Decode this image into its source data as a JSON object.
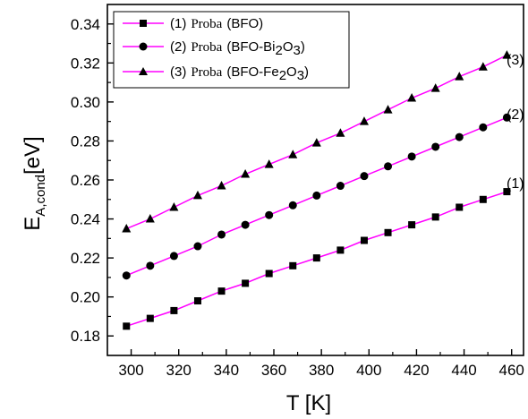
{
  "chart_data": {
    "type": "line",
    "xlabel": "T [K]",
    "ylabel": "E_A,cond[eV]",
    "xlim": [
      290,
      465
    ],
    "ylim": [
      0.17,
      0.35
    ],
    "xticks": [
      300,
      320,
      340,
      360,
      380,
      400,
      420,
      440,
      460
    ],
    "yticks": [
      0.18,
      0.2,
      0.22,
      0.24,
      0.26,
      0.28,
      0.3,
      0.32,
      0.34
    ],
    "xticks_text": [
      "300",
      "320",
      "340",
      "360",
      "380",
      "400",
      "420",
      "440",
      "460"
    ],
    "yticks_text": [
      "0.18",
      "0.20",
      "0.22",
      "0.24",
      "0.26",
      "0.28",
      "0.30",
      "0.32",
      "0.34"
    ],
    "grid": false,
    "legend_position": "top-left",
    "series": [
      {
        "name": "(1) Proba (BFO)",
        "legend_num": "(1)",
        "legend_word": "Proba",
        "legend_text": "(BFO)",
        "end_label": "(1)",
        "marker": "square",
        "line_color": "#ff00ff",
        "marker_color": "#000000",
        "x": [
          298,
          308,
          318,
          328,
          338,
          348,
          358,
          368,
          378,
          388,
          398,
          408,
          418,
          428,
          438,
          448,
          458
        ],
        "y": [
          0.185,
          0.189,
          0.193,
          0.198,
          0.203,
          0.207,
          0.212,
          0.216,
          0.22,
          0.224,
          0.229,
          0.233,
          0.237,
          0.241,
          0.246,
          0.25,
          0.254
        ]
      },
      {
        "name": "(2) Proba (BFO-Bi2O3)",
        "legend_num": "(2)",
        "legend_word": "Proba",
        "legend_text": "(BFO-Bi",
        "legend_sub1": "2",
        "legend_mid": "O",
        "legend_sub2": "3",
        "legend_end": ")",
        "end_label": "(2)",
        "marker": "circle",
        "line_color": "#ff00ff",
        "marker_color": "#000000",
        "x": [
          298,
          308,
          318,
          328,
          338,
          348,
          358,
          368,
          378,
          388,
          398,
          408,
          418,
          428,
          438,
          448,
          458
        ],
        "y": [
          0.211,
          0.216,
          0.221,
          0.226,
          0.232,
          0.237,
          0.242,
          0.247,
          0.252,
          0.257,
          0.262,
          0.267,
          0.272,
          0.277,
          0.282,
          0.287,
          0.292
        ]
      },
      {
        "name": "(3) Proba (BFO-Fe2O3)",
        "legend_num": "(3)",
        "legend_word": "Proba",
        "legend_text": "(BFO-Fe",
        "legend_sub1": "2",
        "legend_mid": "O",
        "legend_sub2": "3",
        "legend_end": ")",
        "end_label": "(3)",
        "marker": "triangle",
        "line_color": "#ff00ff",
        "marker_color": "#000000",
        "x": [
          298,
          308,
          318,
          328,
          338,
          348,
          358,
          368,
          378,
          388,
          398,
          408,
          418,
          428,
          438,
          448,
          458
        ],
        "y": [
          0.235,
          0.24,
          0.246,
          0.252,
          0.257,
          0.263,
          0.268,
          0.273,
          0.279,
          0.284,
          0.29,
          0.296,
          0.302,
          0.307,
          0.313,
          0.318,
          0.324
        ]
      }
    ]
  }
}
